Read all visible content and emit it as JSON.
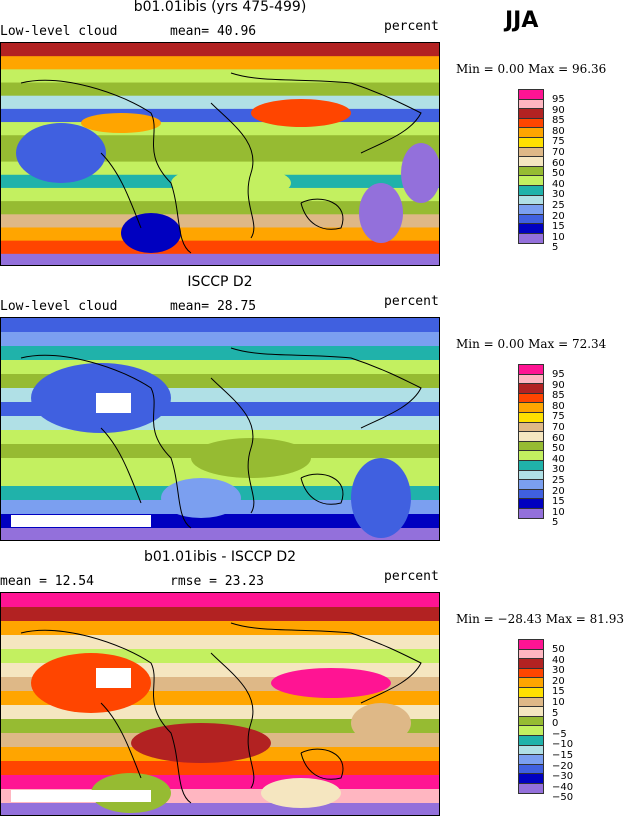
{
  "season": "JJA",
  "colors": [
    "#ff1493",
    "#ffb6c1",
    "#b22222",
    "#ff4500",
    "#ffa500",
    "#ffe000",
    "#deb887",
    "#f5e6c0",
    "#96bb32",
    "#c3f060",
    "#20b2aa",
    "#b0e0e6",
    "#7b9ff0",
    "#4060e0",
    "#0000c0",
    "#9370db"
  ],
  "panels": [
    {
      "title": "b01.01ibis (yrs 475-499)",
      "left_label": "Low-level cloud",
      "stat_label": "mean=  40.96",
      "units": "percent",
      "minmax": "Min =   0.00 Max =  96.36",
      "levels": [
        "95",
        "90",
        "85",
        "80",
        "75",
        "70",
        "60",
        "50",
        "40",
        "30",
        "25",
        "20",
        "15",
        "10",
        "5"
      ]
    },
    {
      "title": "ISCCP D2",
      "left_label": "Low-level cloud",
      "stat_label": "mean=  28.75",
      "units": "percent",
      "minmax": "Min =   0.00 Max =  72.34",
      "levels": [
        "95",
        "90",
        "85",
        "80",
        "75",
        "70",
        "60",
        "50",
        "40",
        "30",
        "25",
        "20",
        "15",
        "10",
        "5"
      ]
    },
    {
      "title": "b01.01ibis - ISCCP D2",
      "left_label": "mean =  12.54",
      "stat_label": "rmse =  23.23",
      "units": "percent",
      "minmax": "Min = −28.43 Max =  81.93",
      "levels": [
        "50",
        "40",
        "30",
        "20",
        "15",
        "10",
        "5",
        "0",
        "−5",
        "−10",
        "−15",
        "−20",
        "−30",
        "−40",
        "−50"
      ]
    }
  ]
}
